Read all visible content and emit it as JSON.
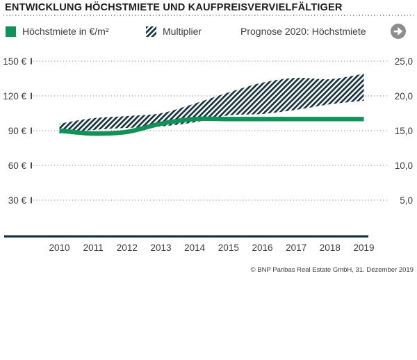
{
  "title": "ENTWICKLUNG HÖCHSTMIETE UND KAUFPREISVERVIELFÄLTIGER",
  "legend": {
    "hoechstmiete_label": "Höchstmiete in €/m²",
    "multiplier_label": "Multiplier",
    "prognose_label": "Prognose 2020: Höchstmiete",
    "prognose_direction": "stable-right-arrow"
  },
  "footer": {
    "copyright": "© BNP Paribas Real Estate GmbH, 31. Dezember 2019"
  },
  "colors": {
    "green": "#0d9355",
    "hatch_dark": "#17333f",
    "axis_dark": "#17333f",
    "grid_gray": "#9b9b9b",
    "text_dark": "#3c3c3b",
    "title_color": "#1d1d1b",
    "icon_gray": "#8d8d8d",
    "tick_dark": "#4a4a4a"
  },
  "chart_data": {
    "type": "line+band",
    "title": "Entwicklung Höchstmiete und Kaufpreisvervielfältiger",
    "categories": [
      "2010",
      "2011",
      "2012",
      "2013",
      "2014",
      "2015",
      "2016",
      "2017",
      "2018",
      "2019"
    ],
    "left_axis": {
      "label": "Höchstmiete in €/m²",
      "ticks": [
        "150 €",
        "120 €",
        "90 €",
        "60 €",
        "30 €"
      ],
      "max": 150,
      "min": 30
    },
    "right_axis": {
      "label": "Multiplier",
      "ticks": [
        "25,0",
        "20,0",
        "15,0",
        "10,0",
        "5,0"
      ],
      "max": 25,
      "min": 5
    },
    "grid": "horizontal-dotted",
    "legend_position": "top",
    "series": [
      {
        "name": "Höchstmiete in €/m²",
        "type": "line",
        "axis": "left",
        "values": [
          90,
          87.5,
          89,
          96,
          100,
          100,
          100,
          100,
          100,
          100
        ]
      },
      {
        "name": "Multiplier (Band Obergrenze)",
        "type": "band-upper",
        "axis": "right",
        "values": [
          16.0,
          16.8,
          17.1,
          17.5,
          18.9,
          20.5,
          21.9,
          22.6,
          22.4,
          23.2
        ]
      },
      {
        "name": "Multiplier (Band Untergrenze)",
        "type": "band-lower",
        "axis": "right",
        "values": [
          14.6,
          15.1,
          15.4,
          15.6,
          16.2,
          17.2,
          17.4,
          18.0,
          18.8,
          19.3
        ]
      }
    ],
    "forecast": {
      "label": "Prognose 2020: Höchstmiete",
      "direction": "stable"
    }
  }
}
